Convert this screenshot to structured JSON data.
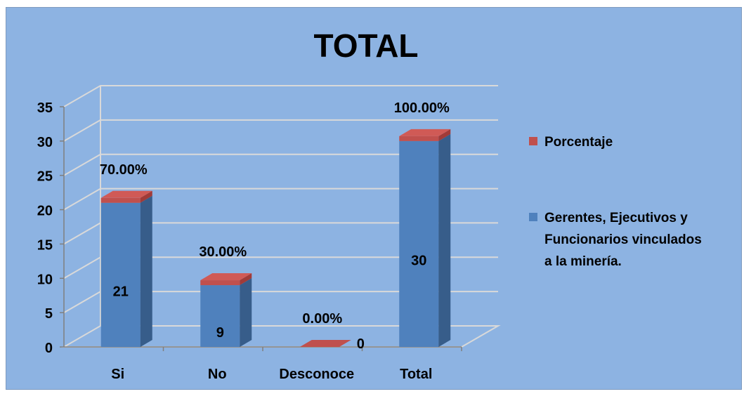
{
  "chart_data": {
    "type": "bar",
    "title": "TOTAL",
    "categories": [
      "Si",
      "No",
      "Desconoce",
      "Total"
    ],
    "series": [
      {
        "name": "Gerentes, Ejecutivos y Funcionarios vinculados a la minería.",
        "legend_lines": [
          "Gerentes, Ejecutivos y",
          "Funcionarios  vinculados",
          "a la minería."
        ],
        "values": [
          21,
          9,
          0,
          30
        ],
        "value_labels": [
          "21",
          "9",
          "0",
          "30"
        ],
        "color": "#4f81bd"
      },
      {
        "name": "Porcentaje",
        "legend_lines": [
          "Porcentaje"
        ],
        "values": [
          0.7,
          0.3,
          0.0,
          1.0
        ],
        "value_labels": [
          "70.00%",
          "30.00%",
          "0.00%",
          "100.00%"
        ],
        "color": "#c0504d"
      }
    ],
    "stacked": true,
    "three_d": true,
    "y_ticks": [
      0,
      5,
      10,
      15,
      20,
      25,
      30,
      35
    ],
    "ylim": [
      0,
      35
    ],
    "grid": true,
    "legend_position": "right",
    "colors": {
      "background": "#8db3e2",
      "gridline": "#d9d9d9",
      "axis": "#7f7f7f"
    }
  }
}
